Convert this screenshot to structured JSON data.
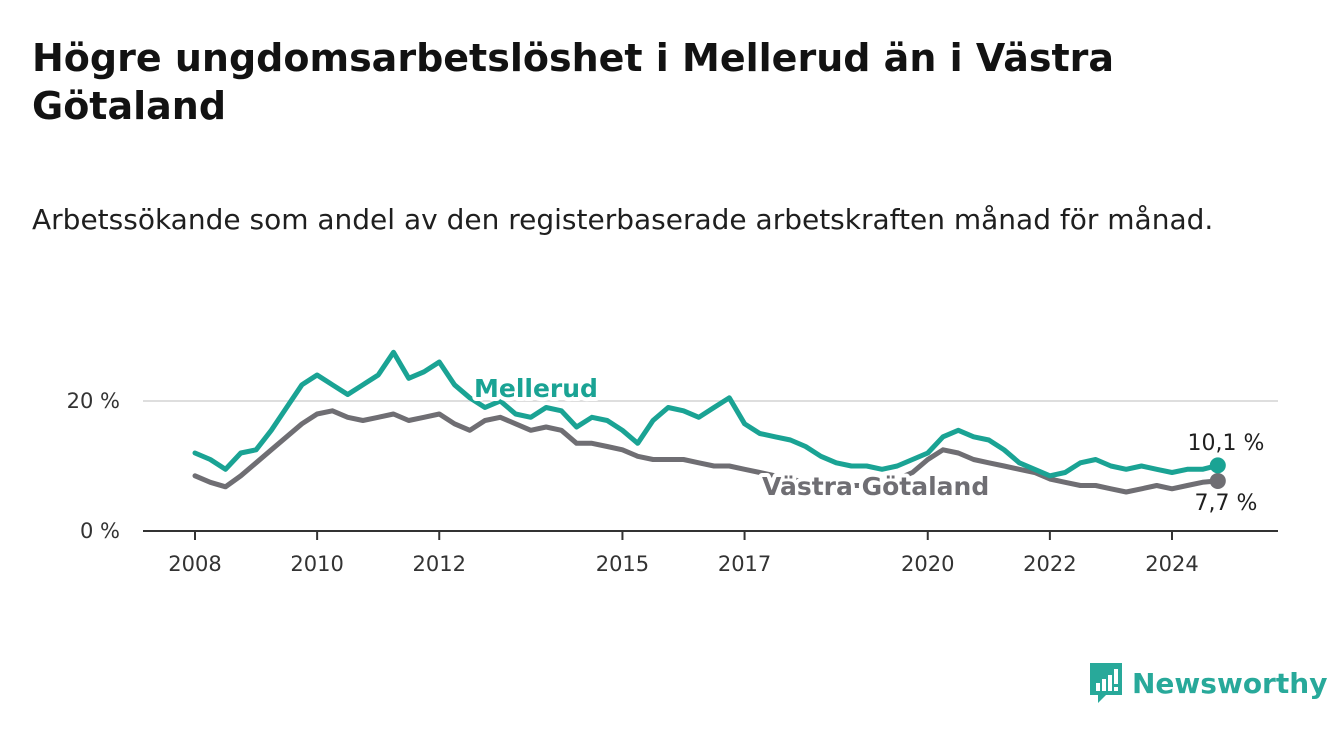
{
  "title": "Högre ungdomsarbetslöshet i Mellerud än i Västra Götaland",
  "subtitle": "Arbetssökande som andel av den registerbaserade arbetskraften månad för månad.",
  "brand": {
    "name": "Newsworthy",
    "color": "#28a99a",
    "icon": "newsworthy-logo-icon"
  },
  "colors": {
    "mellerud": "#1aa394",
    "vastra_gotaland": "#6f6e73",
    "grid": "#dedede",
    "axis": "#333333"
  },
  "chart_data": {
    "type": "line",
    "xlabel": "",
    "ylabel": "",
    "x_ticks": [
      "2008",
      "2010",
      "2012",
      "2015",
      "2017",
      "2020",
      "2022",
      "2024"
    ],
    "y_ticks": [
      "0 %",
      "20 %"
    ],
    "ylim": [
      0,
      30
    ],
    "xlim": [
      "2008-01",
      "2024-12"
    ],
    "grid": "horizontal",
    "series": [
      {
        "name": "Mellerud",
        "end_label": "10,1 %",
        "points": [
          [
            "2008-01",
            12.0
          ],
          [
            "2008-04",
            11.0
          ],
          [
            "2008-07",
            9.5
          ],
          [
            "2008-10",
            12.0
          ],
          [
            "2009-01",
            12.5
          ],
          [
            "2009-04",
            15.5
          ],
          [
            "2009-07",
            19.0
          ],
          [
            "2009-10",
            22.5
          ],
          [
            "2010-01",
            24.0
          ],
          [
            "2010-04",
            22.5
          ],
          [
            "2010-07",
            21.0
          ],
          [
            "2010-10",
            22.5
          ],
          [
            "2011-01",
            24.0
          ],
          [
            "2011-04",
            27.5
          ],
          [
            "2011-07",
            23.5
          ],
          [
            "2011-10",
            24.5
          ],
          [
            "2012-01",
            26.0
          ],
          [
            "2012-04",
            22.5
          ],
          [
            "2012-07",
            20.5
          ],
          [
            "2012-10",
            19.0
          ],
          [
            "2013-01",
            20.0
          ],
          [
            "2013-04",
            18.0
          ],
          [
            "2013-07",
            17.5
          ],
          [
            "2013-10",
            19.0
          ],
          [
            "2014-01",
            18.5
          ],
          [
            "2014-04",
            16.0
          ],
          [
            "2014-07",
            17.5
          ],
          [
            "2014-10",
            17.0
          ],
          [
            "2015-01",
            15.5
          ],
          [
            "2015-04",
            13.5
          ],
          [
            "2015-07",
            17.0
          ],
          [
            "2015-10",
            19.0
          ],
          [
            "2016-01",
            18.5
          ],
          [
            "2016-04",
            17.5
          ],
          [
            "2016-07",
            19.0
          ],
          [
            "2016-10",
            20.5
          ],
          [
            "2017-01",
            16.5
          ],
          [
            "2017-04",
            15.0
          ],
          [
            "2017-07",
            14.5
          ],
          [
            "2017-10",
            14.0
          ],
          [
            "2018-01",
            13.0
          ],
          [
            "2018-04",
            11.5
          ],
          [
            "2018-07",
            10.5
          ],
          [
            "2018-10",
            10.0
          ],
          [
            "2019-01",
            10.0
          ],
          [
            "2019-04",
            9.5
          ],
          [
            "2019-07",
            10.0
          ],
          [
            "2019-10",
            11.0
          ],
          [
            "2020-01",
            12.0
          ],
          [
            "2020-04",
            14.5
          ],
          [
            "2020-07",
            15.5
          ],
          [
            "2020-10",
            14.5
          ],
          [
            "2021-01",
            14.0
          ],
          [
            "2021-04",
            12.5
          ],
          [
            "2021-07",
            10.5
          ],
          [
            "2021-10",
            9.5
          ],
          [
            "2022-01",
            8.5
          ],
          [
            "2022-04",
            9.0
          ],
          [
            "2022-07",
            10.5
          ],
          [
            "2022-10",
            11.0
          ],
          [
            "2023-01",
            10.0
          ],
          [
            "2023-04",
            9.5
          ],
          [
            "2023-07",
            10.0
          ],
          [
            "2023-10",
            9.5
          ],
          [
            "2024-01",
            9.0
          ],
          [
            "2024-04",
            9.5
          ],
          [
            "2024-07",
            9.5
          ],
          [
            "2024-10",
            10.1
          ]
        ]
      },
      {
        "name": "Västra Götaland",
        "end_label": "7,7 %",
        "points": [
          [
            "2008-01",
            8.5
          ],
          [
            "2008-04",
            7.5
          ],
          [
            "2008-07",
            6.8
          ],
          [
            "2008-10",
            8.5
          ],
          [
            "2009-01",
            10.5
          ],
          [
            "2009-04",
            12.5
          ],
          [
            "2009-07",
            14.5
          ],
          [
            "2009-10",
            16.5
          ],
          [
            "2010-01",
            18.0
          ],
          [
            "2010-04",
            18.5
          ],
          [
            "2010-07",
            17.5
          ],
          [
            "2010-10",
            17.0
          ],
          [
            "2011-01",
            17.5
          ],
          [
            "2011-04",
            18.0
          ],
          [
            "2011-07",
            17.0
          ],
          [
            "2011-10",
            17.5
          ],
          [
            "2012-01",
            18.0
          ],
          [
            "2012-04",
            16.5
          ],
          [
            "2012-07",
            15.5
          ],
          [
            "2012-10",
            17.0
          ],
          [
            "2013-01",
            17.5
          ],
          [
            "2013-04",
            16.5
          ],
          [
            "2013-07",
            15.5
          ],
          [
            "2013-10",
            16.0
          ],
          [
            "2014-01",
            15.5
          ],
          [
            "2014-04",
            13.5
          ],
          [
            "2014-07",
            13.5
          ],
          [
            "2014-10",
            13.0
          ],
          [
            "2015-01",
            12.5
          ],
          [
            "2015-04",
            11.5
          ],
          [
            "2015-07",
            11.0
          ],
          [
            "2015-10",
            11.0
          ],
          [
            "2016-01",
            11.0
          ],
          [
            "2016-04",
            10.5
          ],
          [
            "2016-07",
            10.0
          ],
          [
            "2016-10",
            10.0
          ],
          [
            "2017-01",
            9.5
          ],
          [
            "2017-04",
            9.0
          ],
          [
            "2017-07",
            8.5
          ],
          [
            "2017-10",
            8.0
          ],
          [
            "2018-01",
            7.5
          ],
          [
            "2018-04",
            7.0
          ],
          [
            "2018-07",
            7.0
          ],
          [
            "2018-10",
            7.0
          ],
          [
            "2019-01",
            7.0
          ],
          [
            "2019-04",
            7.5
          ],
          [
            "2019-07",
            8.0
          ],
          [
            "2019-10",
            9.0
          ],
          [
            "2020-01",
            11.0
          ],
          [
            "2020-04",
            12.5
          ],
          [
            "2020-07",
            12.0
          ],
          [
            "2020-10",
            11.0
          ],
          [
            "2021-01",
            10.5
          ],
          [
            "2021-04",
            10.0
          ],
          [
            "2021-07",
            9.5
          ],
          [
            "2021-10",
            9.0
          ],
          [
            "2022-01",
            8.0
          ],
          [
            "2022-04",
            7.5
          ],
          [
            "2022-07",
            7.0
          ],
          [
            "2022-10",
            7.0
          ],
          [
            "2023-01",
            6.5
          ],
          [
            "2023-04",
            6.0
          ],
          [
            "2023-07",
            6.5
          ],
          [
            "2023-10",
            7.0
          ],
          [
            "2024-01",
            6.5
          ],
          [
            "2024-04",
            7.0
          ],
          [
            "2024-07",
            7.5
          ],
          [
            "2024-10",
            7.7
          ]
        ]
      }
    ]
  }
}
